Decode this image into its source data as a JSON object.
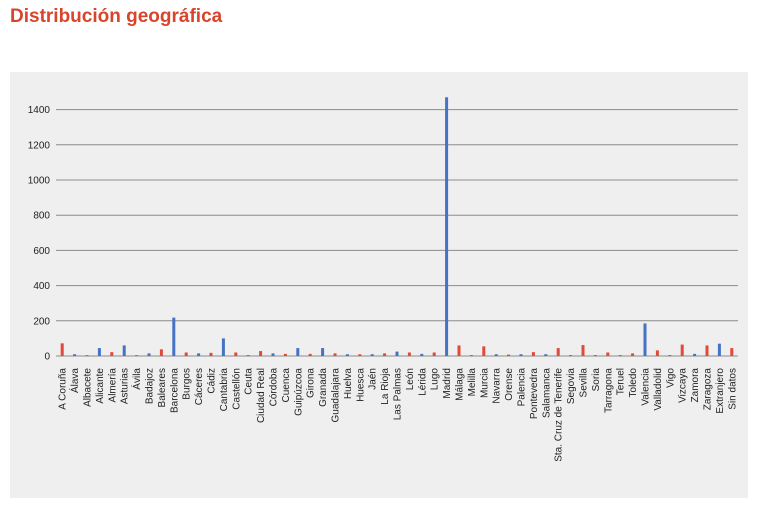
{
  "page": {
    "title": "Distribución geográfica"
  },
  "chart_data": {
    "type": "bar",
    "title": "",
    "xlabel": "",
    "ylabel": "",
    "ylim": [
      0,
      1500
    ],
    "yticks": [
      0,
      200,
      400,
      600,
      800,
      1000,
      1200,
      1400
    ],
    "grid": true,
    "categories": [
      "A Coruña",
      "Álava",
      "Albacete",
      "Alicante",
      "Almería",
      "Asturias",
      "Ávila",
      "Badajoz",
      "Baleares",
      "Barcelona",
      "Burgos",
      "Cáceres",
      "Cádiz",
      "Cantabria",
      "Castellón",
      "Ceuta",
      "Ciudad Real",
      "Córdoba",
      "Cuenca",
      "Guipúzcoa",
      "Girona",
      "Granada",
      "Guadalajara",
      "Huelva",
      "Huesca",
      "Jaén",
      "La Rioja",
      "Las Palmas",
      "León",
      "Lérida",
      "Lugo",
      "Madrid",
      "Málaga",
      "Melilla",
      "Murcia",
      "Navarra",
      "Orense",
      "Palencia",
      "Pontevedra",
      "Salamanca",
      "Sta. Cruz de Tenerife",
      "Segovia",
      "Sevilla",
      "Soria",
      "Tarragona",
      "Teruel",
      "Toledo",
      "Valencia",
      "Valladolid",
      "Vigo",
      "Vizcaya",
      "Zamora",
      "Zaragoza",
      "Extranjero",
      "Sin datos"
    ],
    "values": [
      72,
      10,
      5,
      45,
      22,
      60,
      5,
      15,
      38,
      218,
      20,
      15,
      18,
      100,
      20,
      5,
      28,
      15,
      12,
      45,
      12,
      45,
      15,
      10,
      10,
      10,
      15,
      25,
      20,
      12,
      20,
      1470,
      60,
      5,
      55,
      10,
      8,
      10,
      22,
      10,
      45,
      5,
      62,
      5,
      20,
      5,
      15,
      185,
      32,
      5,
      65,
      12,
      60,
      70,
      45
    ],
    "colors": {
      "blue": "#4472c4",
      "red": "#e3493a",
      "grid": "#8c8c8c",
      "panel": "#efefef"
    },
    "color_sequence": [
      "red",
      "blue",
      "red",
      "blue",
      "red",
      "blue",
      "red",
      "blue",
      "red",
      "blue",
      "red",
      "blue",
      "red",
      "blue",
      "red",
      "blue",
      "red",
      "blue",
      "red",
      "blue",
      "red",
      "blue",
      "red",
      "blue",
      "red",
      "blue",
      "red",
      "blue",
      "red",
      "blue",
      "red",
      "blue",
      "red",
      "blue",
      "red",
      "blue",
      "red",
      "blue",
      "red",
      "blue",
      "red",
      "blue",
      "red",
      "blue",
      "red",
      "blue",
      "red",
      "blue",
      "red",
      "blue",
      "red",
      "blue",
      "red",
      "blue",
      "red"
    ]
  }
}
